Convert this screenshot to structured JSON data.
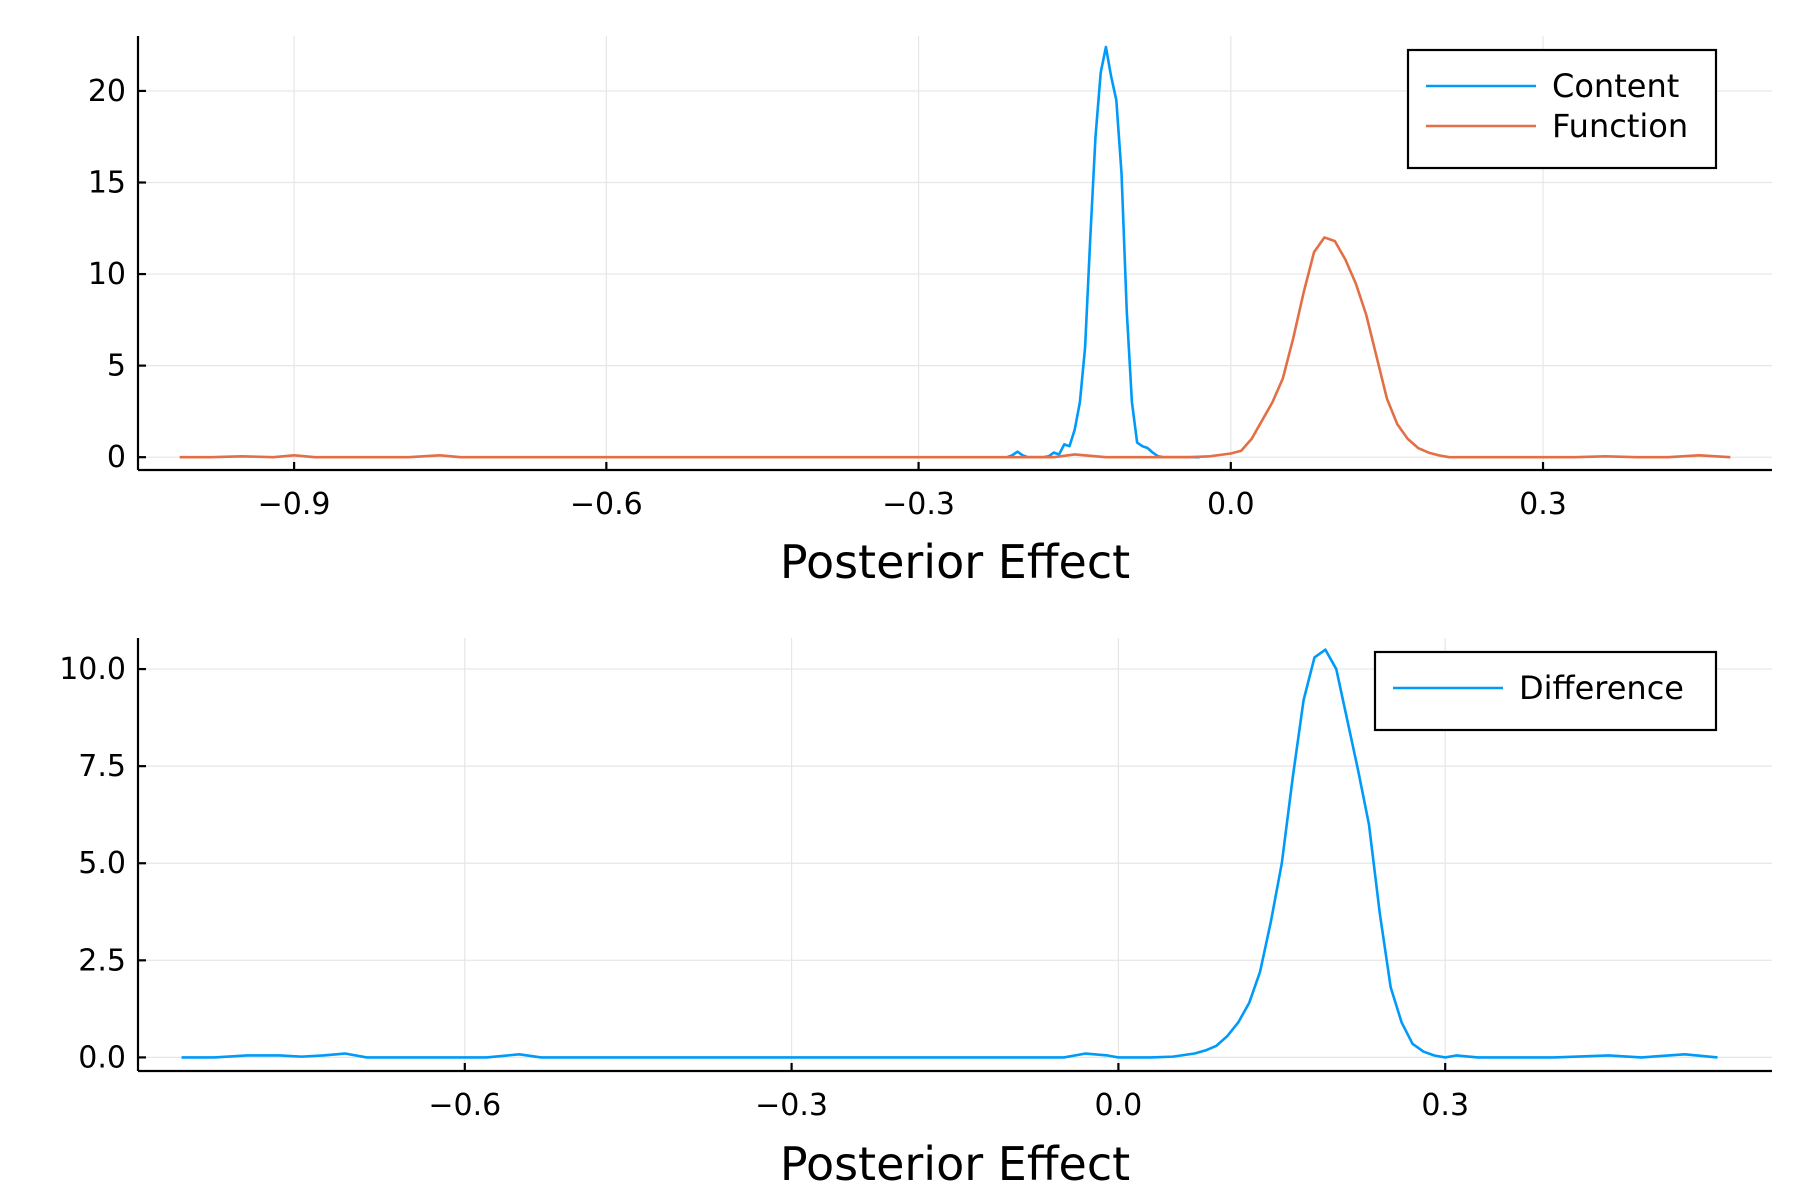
{
  "chart_data": [
    {
      "type": "line",
      "xlabel": "Posterior Effect",
      "ylabel": "",
      "xlim": [
        -1.05,
        0.52
      ],
      "ylim": [
        -0.7,
        23.0
      ],
      "xticks": [
        -0.9,
        -0.6,
        -0.3,
        0.0,
        0.3
      ],
      "xtick_labels": [
        "−0.9",
        "−0.6",
        "−0.3",
        "0.0",
        "0.3"
      ],
      "yticks": [
        0,
        5,
        10,
        15,
        20
      ],
      "ytick_labels": [
        "0",
        "5",
        "10",
        "15",
        "20"
      ],
      "grid": true,
      "legend": "top-right",
      "series": [
        {
          "name": "Content",
          "color": "#009af9",
          "x": [
            -0.215,
            -0.21,
            -0.205,
            -0.2,
            -0.195,
            -0.19,
            -0.185,
            -0.18,
            -0.175,
            -0.17,
            -0.165,
            -0.16,
            -0.155,
            -0.15,
            -0.145,
            -0.14,
            -0.135,
            -0.13,
            -0.125,
            -0.12,
            -0.115,
            -0.11,
            -0.105,
            -0.1,
            -0.095,
            -0.09,
            -0.085,
            -0.08,
            -0.075,
            -0.07,
            -0.065,
            -0.06,
            -0.055,
            -0.05,
            -0.045,
            -0.04,
            -0.035,
            -0.03
          ],
          "y": [
            0,
            0.1,
            0.3,
            0.1,
            0,
            0,
            0,
            0,
            0.05,
            0.25,
            0.15,
            0.7,
            0.6,
            1.5,
            3.0,
            6.0,
            12.0,
            17.5,
            21.0,
            22.4,
            20.8,
            19.5,
            15.5,
            8.0,
            3.0,
            0.8,
            0.6,
            0.5,
            0.25,
            0.05,
            0,
            0,
            0,
            0,
            0,
            0,
            0,
            0
          ]
        },
        {
          "name": "Function",
          "color": "#e26f46",
          "x": [
            -1.01,
            -0.98,
            -0.95,
            -0.92,
            -0.9,
            -0.88,
            -0.85,
            -0.82,
            -0.79,
            -0.76,
            -0.74,
            -0.71,
            -0.65,
            -0.55,
            -0.45,
            -0.35,
            -0.25,
            -0.2,
            -0.17,
            -0.15,
            -0.12,
            -0.08,
            -0.04,
            -0.02,
            0.0,
            0.01,
            0.02,
            0.03,
            0.04,
            0.05,
            0.06,
            0.07,
            0.08,
            0.09,
            0.1,
            0.11,
            0.12,
            0.13,
            0.14,
            0.15,
            0.16,
            0.17,
            0.18,
            0.19,
            0.2,
            0.21,
            0.22,
            0.24,
            0.27,
            0.3,
            0.33,
            0.36,
            0.39,
            0.42,
            0.45,
            0.48
          ],
          "y": [
            0,
            0,
            0.05,
            0,
            0.1,
            0,
            0,
            0,
            0,
            0.1,
            0,
            0,
            0,
            0,
            0,
            0,
            0,
            0,
            0,
            0.15,
            0,
            0,
            0,
            0.05,
            0.2,
            0.35,
            1.0,
            2.0,
            3.0,
            4.3,
            6.5,
            9.0,
            11.2,
            12.0,
            11.8,
            10.8,
            9.5,
            7.8,
            5.5,
            3.2,
            1.8,
            1.0,
            0.5,
            0.25,
            0.1,
            0,
            0,
            0,
            0,
            0,
            0,
            0.05,
            0,
            0,
            0.1,
            0
          ]
        }
      ]
    },
    {
      "type": "line",
      "xlabel": "Posterior Effect",
      "ylabel": "",
      "xlim": [
        -0.9,
        0.6
      ],
      "ylim": [
        -0.35,
        10.8
      ],
      "xticks": [
        -0.6,
        -0.3,
        0.0,
        0.3
      ],
      "xtick_labels": [
        "−0.6",
        "−0.3",
        "0.0",
        "0.3"
      ],
      "yticks": [
        0,
        2.5,
        5.0,
        7.5,
        10.0
      ],
      "ytick_labels": [
        "0.0",
        "2.5",
        "5.0",
        "7.5",
        "10.0"
      ],
      "grid": true,
      "legend": "top-right",
      "series": [
        {
          "name": "Difference",
          "color": "#009af9",
          "x": [
            -0.86,
            -0.83,
            -0.8,
            -0.77,
            -0.75,
            -0.73,
            -0.71,
            -0.69,
            -0.62,
            -0.58,
            -0.55,
            -0.53,
            -0.5,
            -0.4,
            -0.3,
            -0.2,
            -0.1,
            -0.05,
            -0.03,
            -0.01,
            0.0,
            0.03,
            0.05,
            0.07,
            0.08,
            0.09,
            0.1,
            0.11,
            0.12,
            0.13,
            0.14,
            0.15,
            0.16,
            0.17,
            0.18,
            0.19,
            0.2,
            0.21,
            0.22,
            0.23,
            0.24,
            0.25,
            0.26,
            0.27,
            0.28,
            0.29,
            0.3,
            0.31,
            0.33,
            0.36,
            0.4,
            0.45,
            0.48,
            0.52,
            0.55
          ],
          "y": [
            0,
            0,
            0.05,
            0.05,
            0.02,
            0.05,
            0.1,
            0,
            0,
            0,
            0.08,
            0,
            0,
            0,
            0,
            0,
            0,
            0,
            0.1,
            0.05,
            0,
            0,
            0.02,
            0.1,
            0.18,
            0.3,
            0.55,
            0.9,
            1.4,
            2.2,
            3.5,
            5.0,
            7.2,
            9.2,
            10.3,
            10.5,
            10.0,
            8.7,
            7.4,
            6.0,
            3.7,
            1.8,
            0.9,
            0.35,
            0.15,
            0.05,
            0,
            0.05,
            0,
            0,
            0,
            0.05,
            0,
            0.08,
            0
          ]
        }
      ]
    }
  ]
}
